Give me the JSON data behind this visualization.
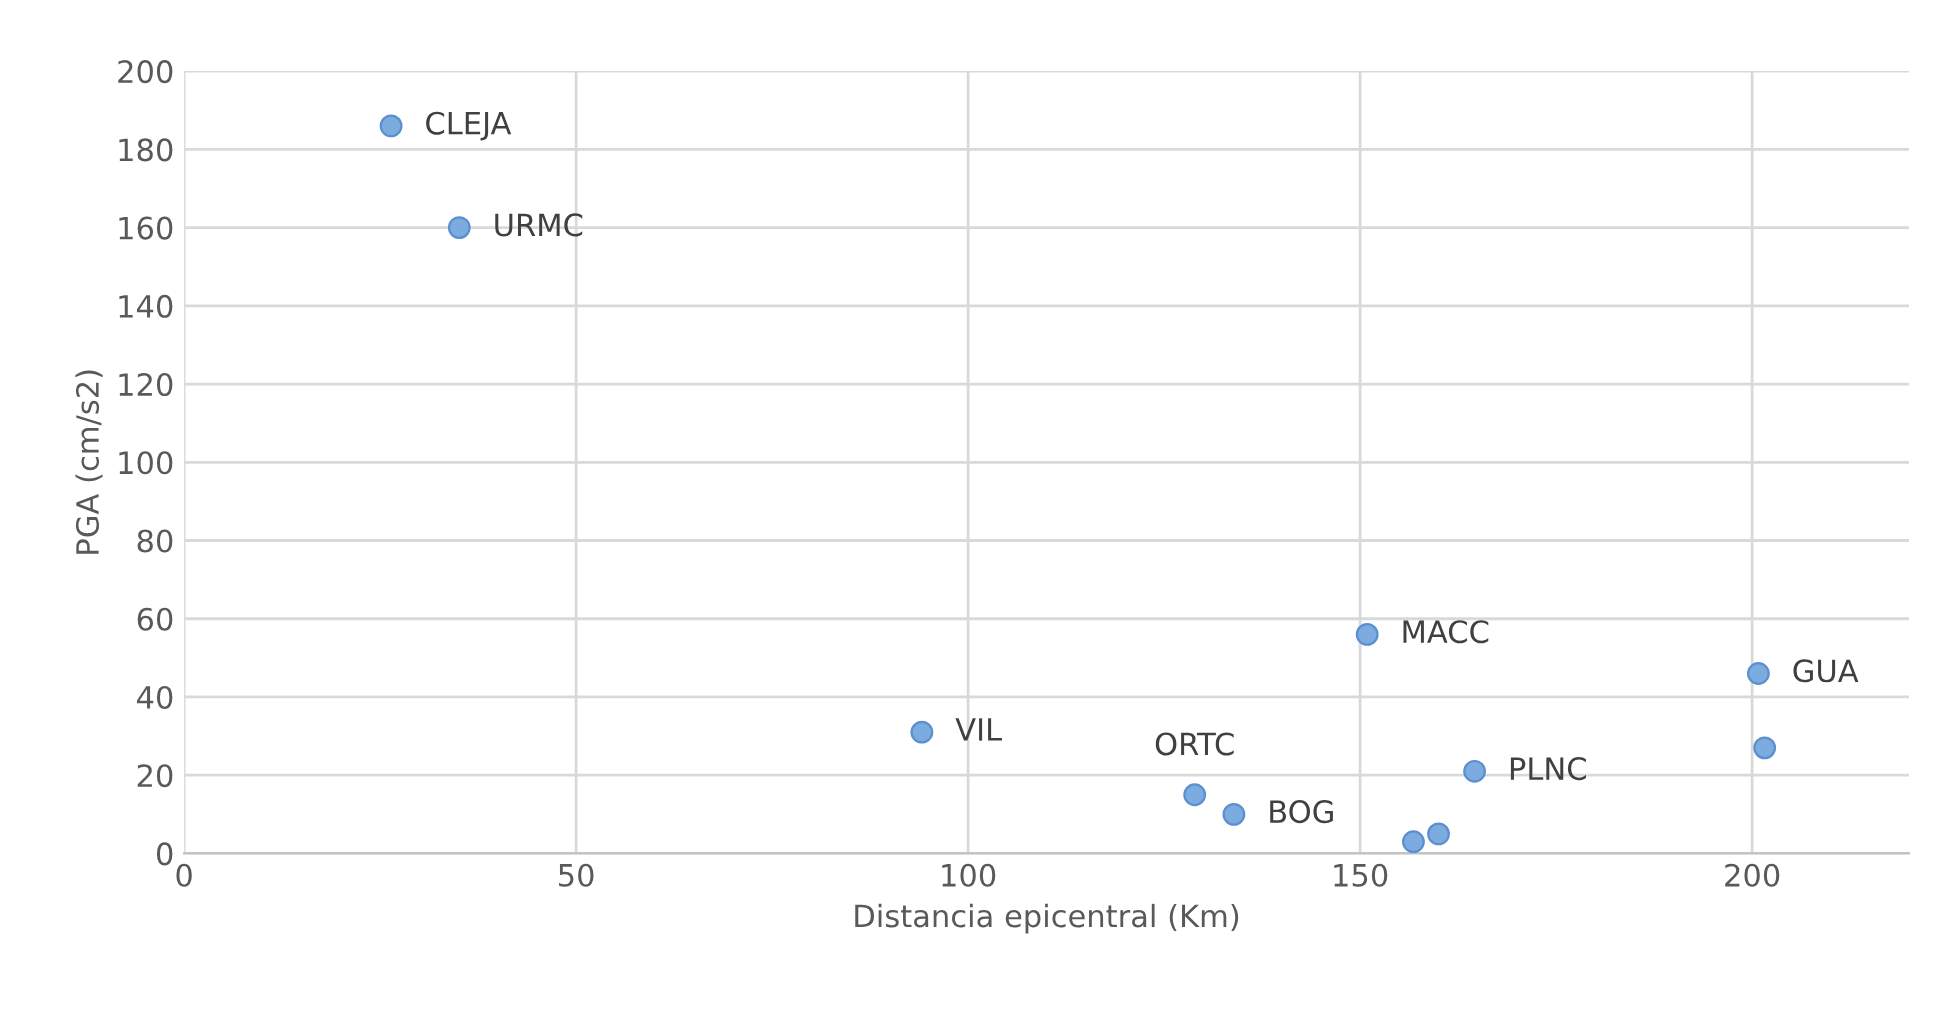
{
  "chart_data": {
    "type": "scatter",
    "xlabel": "Distancia epicentral (Km)",
    "ylabel": "PGA (cm/s2)",
    "x": [
      26.4,
      35.1,
      94.1,
      150.9,
      128.9,
      133.9,
      156.8,
      160.0,
      164.6,
      200.8,
      201.6
    ],
    "values": [
      186,
      160,
      31,
      56,
      15,
      10,
      3,
      5,
      21,
      46,
      27
    ],
    "color": "#7cacdf",
    "marker": "circle",
    "xlim": [
      0,
      220
    ],
    "xticks": [
      0,
      50,
      100,
      150,
      200
    ],
    "ylim": [
      0,
      200
    ],
    "yticks": [
      0,
      20,
      40,
      60,
      80,
      100,
      120,
      140,
      160,
      180,
      200
    ],
    "grid": true,
    "annotations": [
      {
        "text": "CLEJA",
        "x": 26.4,
        "y": 186
      },
      {
        "text": "URMC",
        "x": 35.1,
        "y": 160
      },
      {
        "text": "VIL",
        "x": 94.1,
        "y": 31
      },
      {
        "text": "MACC",
        "x": 150.9,
        "y": 56
      },
      {
        "text": "ORTC",
        "x": 128.9,
        "y": 15
      },
      {
        "text": "BOG",
        "x": 133.9,
        "y": 10
      },
      {
        "text": "PLNC",
        "x": 164.6,
        "y": 21
      },
      {
        "text": "GUA",
        "x": 200.8,
        "y": 46
      }
    ]
  }
}
